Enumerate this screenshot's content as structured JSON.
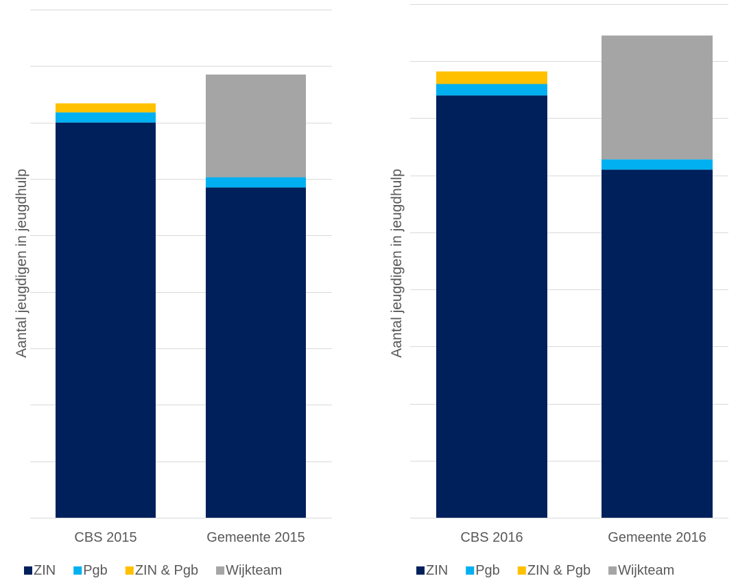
{
  "charts": [
    {
      "ylabel": "Aantal jeugdigen in jeugdhulp",
      "legend_items": [
        {
          "label": "ZIN",
          "color": "#00205B"
        },
        {
          "label": "Pgb",
          "color": "#00B0F0"
        },
        {
          "label": "ZIN & Pgb",
          "color": "#FFC000"
        },
        {
          "label": "Wijkteam",
          "color": "#A5A5A5"
        }
      ]
    },
    {
      "ylabel": "Aantal jeugdigen in jeugdhulp",
      "legend_items": [
        {
          "label": "ZIN",
          "color": "#00205B"
        },
        {
          "label": "Pgb",
          "color": "#00B0F0"
        },
        {
          "label": "ZIN & Pgb",
          "color": "#FFC000"
        },
        {
          "label": "Wijkteam",
          "color": "#A5A5A5"
        }
      ]
    }
  ],
  "chart_data": [
    {
      "type": "bar",
      "stacked": true,
      "categories": [
        "CBS 2015",
        "Gemeente 2015"
      ],
      "series": [
        {
          "name": "ZIN",
          "color": "#00205B",
          "values": [
            7.0,
            5.85
          ]
        },
        {
          "name": "Pgb",
          "color": "#00B0F0",
          "values": [
            0.18,
            0.18
          ]
        },
        {
          "name": "ZIN & Pgb",
          "color": "#FFC000",
          "values": [
            0.16,
            0
          ]
        },
        {
          "name": "Wijkteam",
          "color": "#A5A5A5",
          "values": [
            0,
            1.82
          ]
        }
      ],
      "ylim": [
        0,
        9
      ],
      "ytick_count": 9,
      "ytick_labels_shown": false,
      "ylabel": "Aantal jeugdigen in jeugdhulp",
      "grid": true,
      "legend": "bottom"
    },
    {
      "type": "bar",
      "stacked": true,
      "categories": [
        "CBS 2016",
        "Gemeente 2016"
      ],
      "series": [
        {
          "name": "ZIN",
          "color": "#00205B",
          "values": [
            7.4,
            6.1
          ]
        },
        {
          "name": "Pgb",
          "color": "#00B0F0",
          "values": [
            0.2,
            0.18
          ]
        },
        {
          "name": "ZIN & Pgb",
          "color": "#FFC000",
          "values": [
            0.22,
            0
          ]
        },
        {
          "name": "Wijkteam",
          "color": "#A5A5A5",
          "values": [
            0,
            2.17
          ]
        }
      ],
      "ylim": [
        0,
        9
      ],
      "ytick_count": 9,
      "ytick_labels_shown": false,
      "ylabel": "Aantal jeugdigen in jeugdhulp",
      "grid": true,
      "legend": "bottom"
    }
  ]
}
